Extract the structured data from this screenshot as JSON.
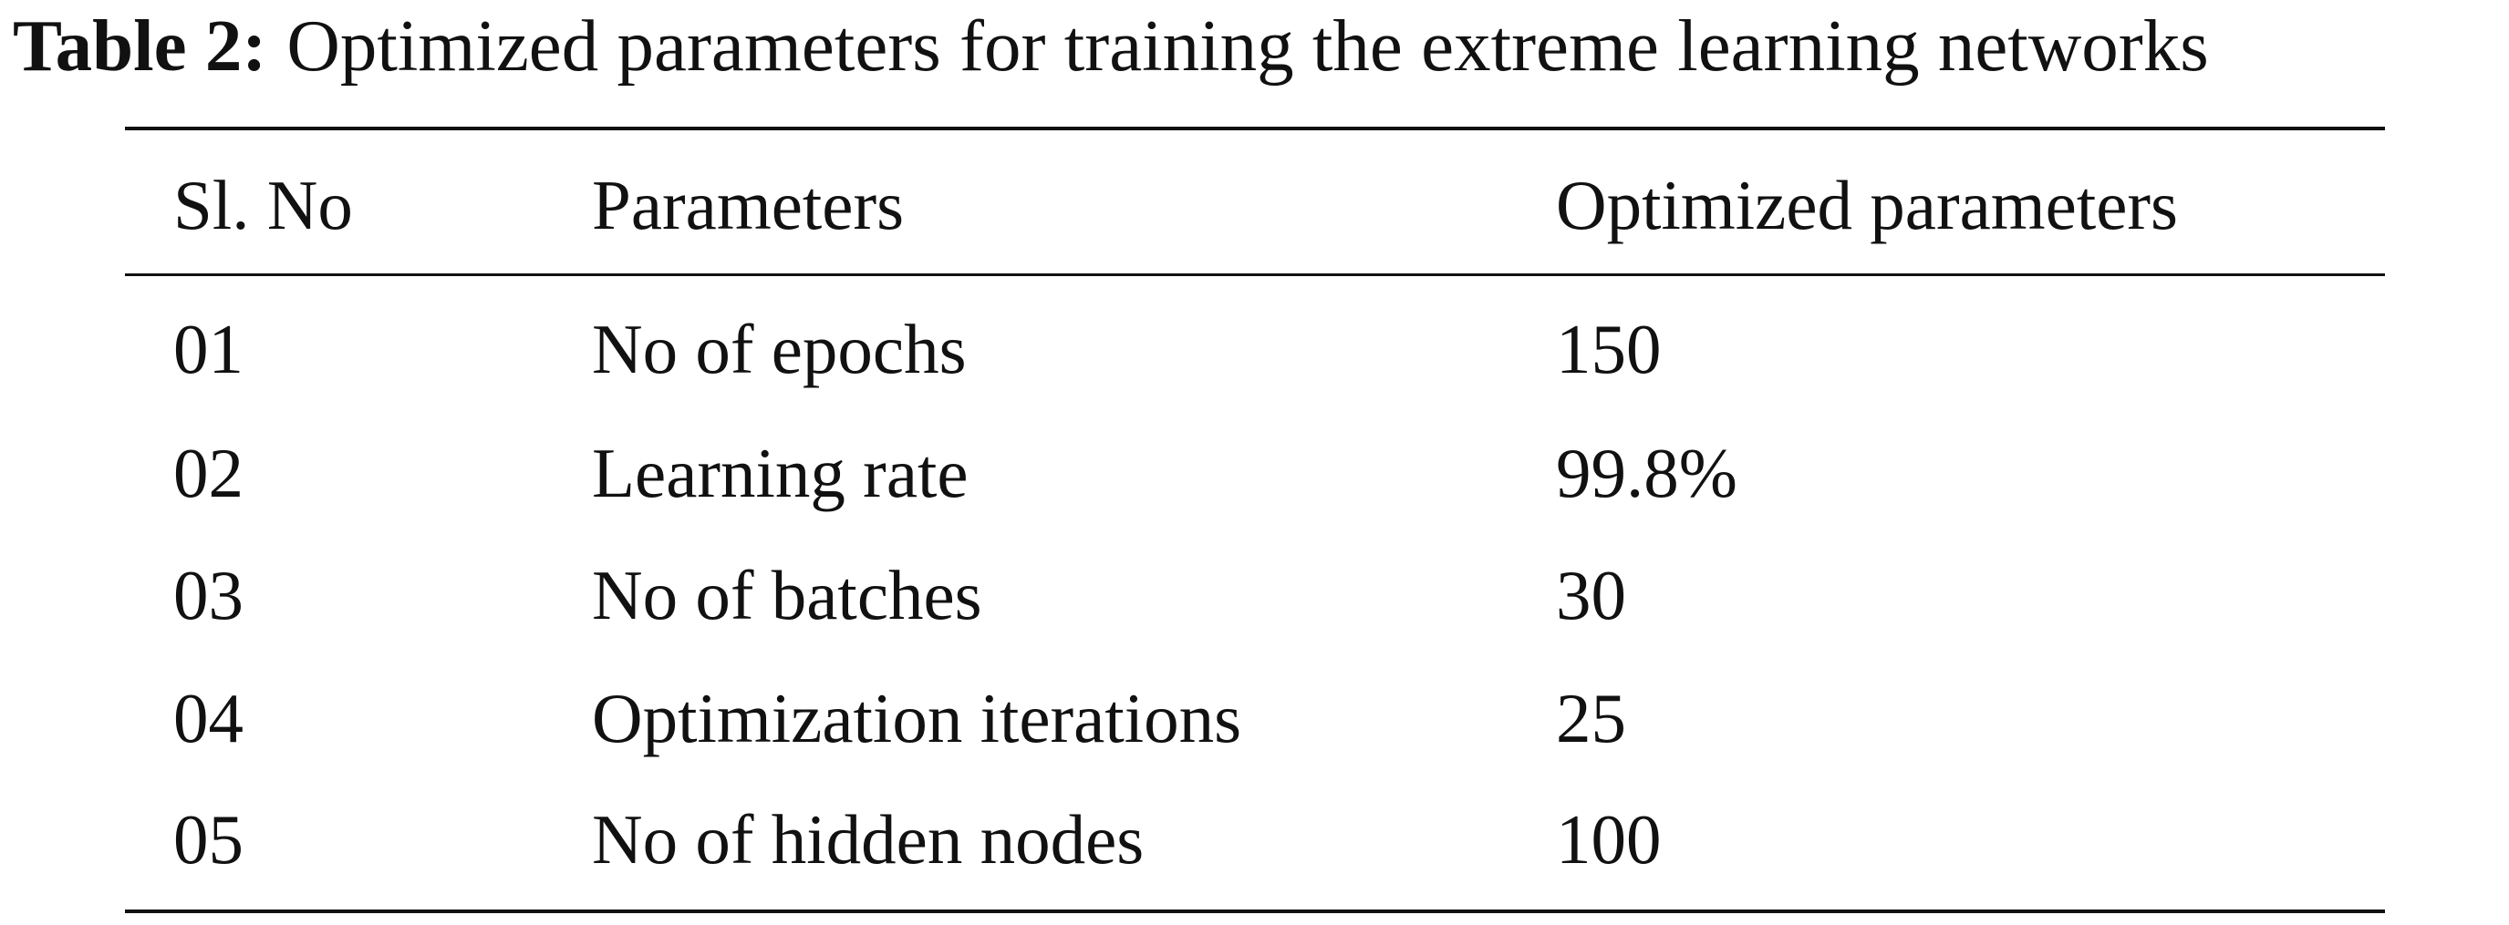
{
  "caption": {
    "label": "Table 2:",
    "text": "Optimized parameters for training the extreme learning networks"
  },
  "table": {
    "headers": [
      "Sl. No",
      "Parameters",
      "Optimized parameters"
    ],
    "rows": [
      [
        "01",
        "No of epochs",
        "150"
      ],
      [
        "02",
        "Learning rate",
        "99.8%"
      ],
      [
        "03",
        "No of batches",
        "30"
      ],
      [
        "04",
        "Optimization iterations",
        "25"
      ],
      [
        "05",
        "No of hidden nodes",
        "100"
      ]
    ]
  }
}
